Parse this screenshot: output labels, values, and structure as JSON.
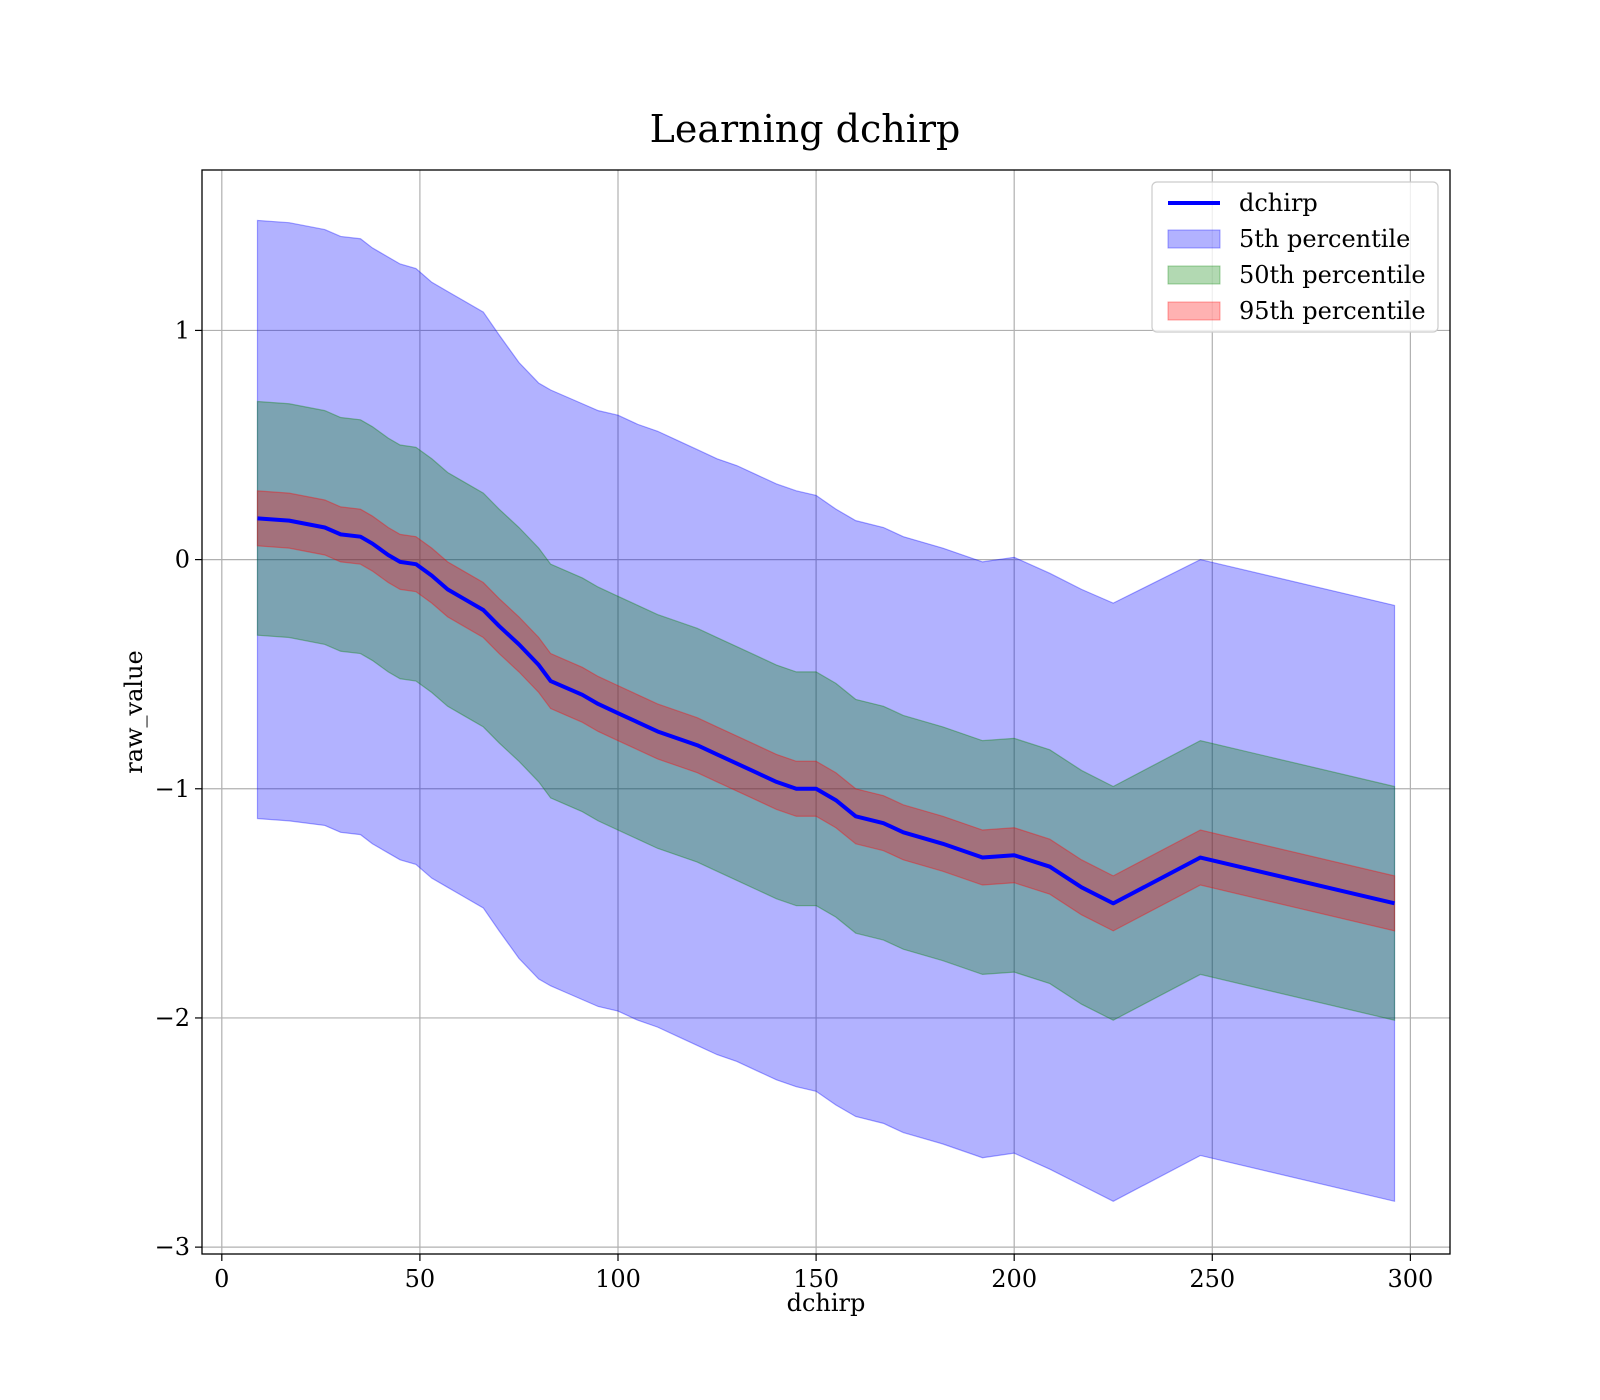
{
  "chart_data": {
    "type": "line",
    "title": "Learning dchirp",
    "xlabel": "dchirp",
    "ylabel": "raw_value",
    "xlim": [
      -5,
      310
    ],
    "ylim": [
      -3.03,
      1.7
    ],
    "xticks": [
      0,
      50,
      100,
      150,
      200,
      250,
      300
    ],
    "xtick_labels": [
      "0",
      "50",
      "100",
      "150",
      "200",
      "250",
      "300"
    ],
    "yticks": [
      1,
      0,
      -1,
      -2,
      -3
    ],
    "ytick_labels": [
      "1",
      "0",
      "−1",
      "−2",
      "−3"
    ],
    "grid": true,
    "legend_position": "top-right",
    "x": [
      9,
      17,
      26,
      30,
      35,
      38,
      42,
      45,
      49,
      53,
      57,
      61,
      66,
      70,
      75,
      80,
      83,
      87,
      91,
      95,
      100,
      105,
      110,
      115,
      120,
      125,
      130,
      135,
      140,
      145,
      150,
      155,
      160,
      167,
      172,
      182,
      192,
      200,
      209,
      217,
      225,
      247,
      296
    ],
    "series": [
      {
        "name": "dchirp",
        "kind": "line",
        "color": "#0000ff",
        "values": [
          0.18,
          0.17,
          0.14,
          0.11,
          0.1,
          0.07,
          0.02,
          -0.01,
          -0.02,
          -0.07,
          -0.13,
          -0.17,
          -0.22,
          -0.29,
          -0.37,
          -0.46,
          -0.53,
          -0.56,
          -0.59,
          -0.63,
          -0.67,
          -0.71,
          -0.75,
          -0.78,
          -0.81,
          -0.85,
          -0.89,
          -0.93,
          -0.97,
          -1.0,
          -1.0,
          -1.05,
          -1.12,
          -1.15,
          -1.19,
          -1.24,
          -1.3,
          -1.29,
          -1.34,
          -1.43,
          -1.5,
          -1.3,
          -1.5
        ]
      },
      {
        "name": "5th percentile",
        "kind": "band",
        "color": "#0000ff",
        "opacity": 0.3,
        "upper": [
          1.48,
          1.47,
          1.44,
          1.41,
          1.4,
          1.36,
          1.32,
          1.29,
          1.27,
          1.21,
          1.17,
          1.13,
          1.08,
          0.98,
          0.86,
          0.77,
          0.74,
          0.71,
          0.68,
          0.65,
          0.63,
          0.59,
          0.56,
          0.52,
          0.48,
          0.44,
          0.41,
          0.37,
          0.33,
          0.3,
          0.28,
          0.22,
          0.17,
          0.14,
          0.1,
          0.05,
          -0.01,
          0.01,
          -0.06,
          -0.13,
          -0.19,
          0.0,
          -0.2
        ],
        "lower": [
          -1.13,
          -1.14,
          -1.16,
          -1.19,
          -1.2,
          -1.24,
          -1.28,
          -1.31,
          -1.33,
          -1.39,
          -1.43,
          -1.47,
          -1.52,
          -1.62,
          -1.74,
          -1.83,
          -1.86,
          -1.89,
          -1.92,
          -1.95,
          -1.97,
          -2.01,
          -2.04,
          -2.08,
          -2.12,
          -2.16,
          -2.19,
          -2.23,
          -2.27,
          -2.3,
          -2.32,
          -2.38,
          -2.43,
          -2.46,
          -2.5,
          -2.55,
          -2.61,
          -2.59,
          -2.66,
          -2.73,
          -2.8,
          -2.6,
          -2.8
        ]
      },
      {
        "name": "50th percentile",
        "kind": "band",
        "color": "#008000",
        "opacity": 0.3,
        "upper": [
          0.69,
          0.68,
          0.65,
          0.62,
          0.61,
          0.58,
          0.53,
          0.5,
          0.49,
          0.44,
          0.38,
          0.34,
          0.29,
          0.22,
          0.14,
          0.05,
          -0.02,
          -0.05,
          -0.08,
          -0.12,
          -0.16,
          -0.2,
          -0.24,
          -0.27,
          -0.3,
          -0.34,
          -0.38,
          -0.42,
          -0.46,
          -0.49,
          -0.49,
          -0.54,
          -0.61,
          -0.64,
          -0.68,
          -0.73,
          -0.79,
          -0.78,
          -0.83,
          -0.92,
          -0.99,
          -0.79,
          -0.99
        ],
        "lower": [
          -0.33,
          -0.34,
          -0.37,
          -0.4,
          -0.41,
          -0.44,
          -0.49,
          -0.52,
          -0.53,
          -0.58,
          -0.64,
          -0.68,
          -0.73,
          -0.8,
          -0.88,
          -0.97,
          -1.04,
          -1.07,
          -1.1,
          -1.14,
          -1.18,
          -1.22,
          -1.26,
          -1.29,
          -1.32,
          -1.36,
          -1.4,
          -1.44,
          -1.48,
          -1.51,
          -1.51,
          -1.56,
          -1.63,
          -1.66,
          -1.7,
          -1.75,
          -1.81,
          -1.8,
          -1.85,
          -1.94,
          -2.01,
          -1.81,
          -2.01
        ]
      },
      {
        "name": "95th percentile",
        "kind": "band",
        "color": "#ff0000",
        "opacity": 0.3,
        "upper": [
          0.3,
          0.29,
          0.26,
          0.23,
          0.22,
          0.19,
          0.14,
          0.11,
          0.1,
          0.05,
          -0.01,
          -0.05,
          -0.1,
          -0.17,
          -0.25,
          -0.34,
          -0.41,
          -0.44,
          -0.47,
          -0.51,
          -0.55,
          -0.59,
          -0.63,
          -0.66,
          -0.69,
          -0.73,
          -0.77,
          -0.81,
          -0.85,
          -0.88,
          -0.88,
          -0.93,
          -1.0,
          -1.03,
          -1.07,
          -1.12,
          -1.18,
          -1.17,
          -1.22,
          -1.31,
          -1.38,
          -1.18,
          -1.38
        ],
        "lower": [
          0.06,
          0.05,
          0.02,
          -0.01,
          -0.02,
          -0.05,
          -0.1,
          -0.13,
          -0.14,
          -0.19,
          -0.25,
          -0.29,
          -0.34,
          -0.41,
          -0.49,
          -0.58,
          -0.65,
          -0.68,
          -0.71,
          -0.75,
          -0.79,
          -0.83,
          -0.87,
          -0.9,
          -0.93,
          -0.97,
          -1.01,
          -1.05,
          -1.09,
          -1.12,
          -1.12,
          -1.17,
          -1.24,
          -1.27,
          -1.31,
          -1.36,
          -1.42,
          -1.41,
          -1.46,
          -1.55,
          -1.62,
          -1.42,
          -1.62
        ]
      }
    ]
  }
}
